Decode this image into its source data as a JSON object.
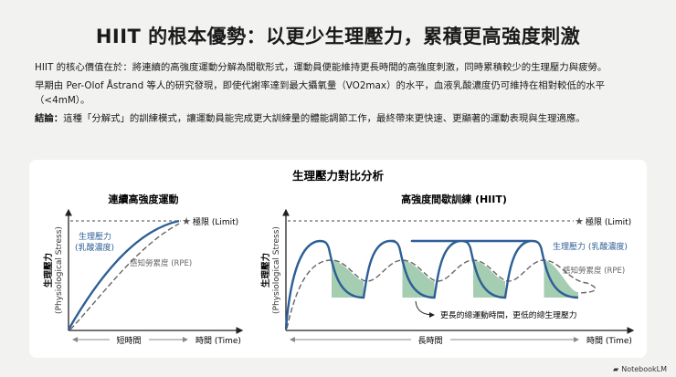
{
  "title": "HIIT 的根本優勢：以更少生理壓力，累積更高強度刺激",
  "paragraphs": [
    {
      "text": "HIIT 的核心價值在於：將連續的高強度運動分解為間歇形式，運動員便能維持更長時間的高強度刺激，同時累積較少的生理壓力與疲勞。"
    },
    {
      "text": "早期由 Per-Olof Åstrand 等人的研究發現，即使代謝率達到最大攝氧量（VO2max）的水平，血液乳酸濃度仍可維持在相對較低的水平（<4mM）。"
    },
    {
      "label": "結論：",
      "text": "這種「分解式」的訓練模式，讓運動員能完成更大訓練量的體能調節工作，最終帶來更快速、更顯著的運動表現與生理適應。"
    }
  ],
  "figure": {
    "title": "生理壓力對比分析",
    "left": {
      "title": "連續高強度運動",
      "ylabel_zh": "生理壓力",
      "ylabel_en": "(Physiological Stress)",
      "limit": "極限 (Limit)",
      "stress_line1": "生理壓力",
      "stress_line2": "(乳酸濃度)",
      "rpe": "感知勞累度 (RPE)",
      "duration": "短時間",
      "xlabel": "時間 (Time)"
    },
    "right": {
      "title": "高強度間歇訓練 (HIIT)",
      "ylabel_zh": "生理壓力",
      "ylabel_en": "(Physiological Stress)",
      "limit": "極限 (Limit)",
      "stress": "生理壓力 (乳酸濃度)",
      "rpe": "感知勞累度 (RPE)",
      "annotation": "更長的總運動時間，更低的總生理壓力",
      "duration": "長時間",
      "xlabel": "時間 (Time)"
    }
  },
  "colors": {
    "stress": "#2d5f96",
    "rpe": "#666666",
    "fill": "#8fc19e"
  },
  "badge": "NotebookLM"
}
